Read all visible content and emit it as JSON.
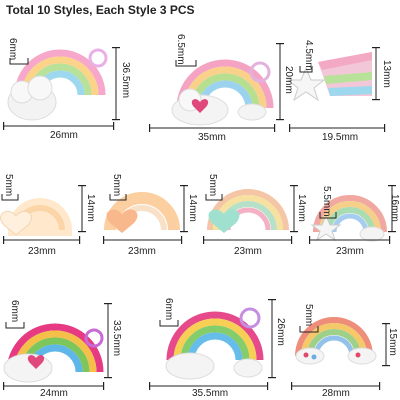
{
  "title": "Total 10 Styles, Each Style 3 PCS",
  "items": [
    {
      "w": "26mm",
      "h": "36.5mm",
      "t": "6mm"
    },
    {
      "w": "35mm",
      "h": "20mm",
      "t": "6.5mm"
    },
    {
      "w": "19.5mm",
      "h": "13mm",
      "t": "4.5mm"
    },
    {
      "w": "23mm",
      "h": "14mm",
      "t": "5mm"
    },
    {
      "w": "23mm",
      "h": "14mm",
      "t": "5mm"
    },
    {
      "w": "23mm",
      "h": "14mm",
      "t": "5mm"
    },
    {
      "w": "23mm",
      "h": "16mm",
      "t": "5.5mm"
    },
    {
      "w": "24mm",
      "h": "33.5mm",
      "t": "6mm"
    },
    {
      "w": "35.5mm",
      "h": "26mm",
      "t": "6mm"
    },
    {
      "w": "28mm",
      "h": "15mm",
      "t": "5mm"
    }
  ]
}
